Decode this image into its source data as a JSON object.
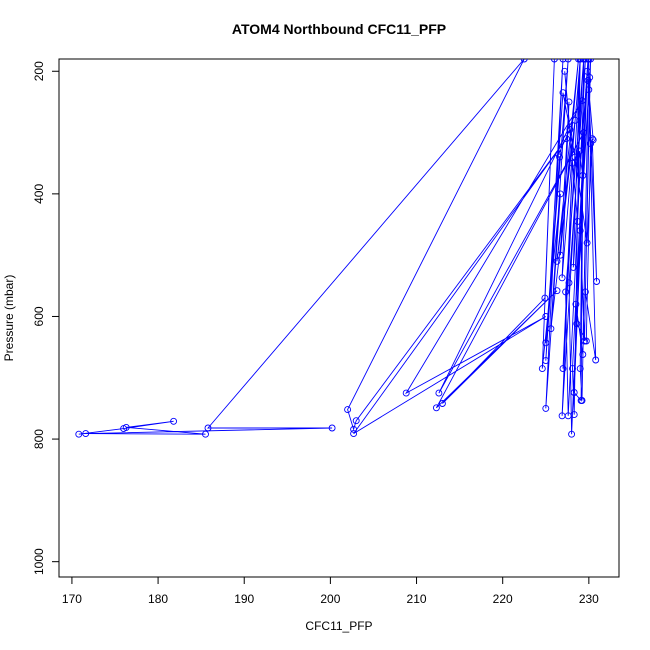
{
  "chart_data": {
    "type": "scatter",
    "title": "ATOM4 Northbound CFC11_PFP",
    "xlabel": "CFC11_PFP",
    "ylabel": "Pressure (mbar)",
    "xlim": [
      168.5,
      233.5
    ],
    "ylim": [
      1025,
      180
    ],
    "y_reversed": true,
    "x_ticks": [
      "170",
      "180",
      "190",
      "200",
      "210",
      "220",
      "230"
    ],
    "y_ticks": [
      "200",
      "400",
      "600",
      "800",
      "1000"
    ],
    "grid": false,
    "legend": "none",
    "series": [
      {
        "style": "lines+points",
        "color": "#0000ff",
        "points": [
          [
            170.8,
            792
          ],
          [
            176.0,
            783
          ],
          [
            181.8,
            771
          ],
          [
            176.3,
            781
          ],
          [
            185.5,
            792
          ],
          [
            171.6,
            791
          ],
          [
            200.2,
            782
          ],
          [
            185.8,
            782
          ],
          [
            222.5,
            180
          ],
          [
            202.0,
            752
          ],
          [
            202.7,
            784
          ],
          [
            203.0,
            770
          ],
          [
            227.4,
            310
          ],
          [
            202.7,
            791
          ],
          [
            225.0,
            600
          ],
          [
            208.8,
            725
          ],
          [
            229.2,
            248
          ],
          [
            212.6,
            725
          ],
          [
            229.4,
            300
          ],
          [
            212.3,
            749
          ],
          [
            226.3,
            558
          ],
          [
            213.0,
            742
          ],
          [
            224.9,
            570
          ],
          [
            226.0,
            180
          ],
          [
            224.6,
            685
          ],
          [
            226.7,
            400
          ],
          [
            225.0,
            750
          ],
          [
            227.0,
            180
          ],
          [
            225.0,
            672
          ],
          [
            226.6,
            340
          ],
          [
            225.0,
            643
          ],
          [
            227.6,
            180
          ],
          [
            225.6,
            620
          ],
          [
            228.4,
            280
          ],
          [
            226.3,
            510
          ],
          [
            228.8,
            180
          ],
          [
            226.7,
            500
          ],
          [
            227.7,
            250
          ],
          [
            226.9,
            537
          ],
          [
            229.0,
            180
          ],
          [
            227.0,
            685
          ],
          [
            228.1,
            350
          ],
          [
            226.9,
            762
          ],
          [
            229.4,
            180
          ],
          [
            227.3,
            560
          ],
          [
            227.6,
            762
          ],
          [
            229.6,
            180
          ],
          [
            227.7,
            545
          ],
          [
            228.0,
            792
          ],
          [
            229.8,
            200
          ],
          [
            228.1,
            685
          ],
          [
            228.3,
            760
          ],
          [
            229.0,
            180
          ],
          [
            228.2,
            520
          ],
          [
            229.9,
            180
          ],
          [
            228.3,
            724
          ],
          [
            229.1,
            737
          ],
          [
            229.4,
            180
          ],
          [
            229.0,
            685
          ],
          [
            229.2,
            737
          ],
          [
            230.0,
            180
          ],
          [
            229.3,
            662
          ],
          [
            228.5,
            580
          ],
          [
            230.1,
            210
          ],
          [
            229.5,
            640
          ],
          [
            229.0,
            460
          ],
          [
            230.2,
            180
          ],
          [
            229.6,
            560
          ],
          [
            230.8,
            671
          ],
          [
            230.0,
            230
          ],
          [
            230.9,
            543
          ],
          [
            230.4,
            310
          ],
          [
            229.8,
            480
          ],
          [
            228.4,
            340
          ],
          [
            227.0,
            235
          ],
          [
            226.5,
            335
          ],
          [
            227.8,
            295
          ],
          [
            227.2,
            200
          ],
          [
            228.7,
            445
          ],
          [
            228.9,
            330
          ],
          [
            229.3,
            370
          ],
          [
            228.6,
            612
          ],
          [
            229.7,
            640
          ],
          [
            230.2,
            318
          ],
          [
            229.9,
            215
          ],
          [
            230.5,
            312
          ]
        ]
      }
    ]
  }
}
